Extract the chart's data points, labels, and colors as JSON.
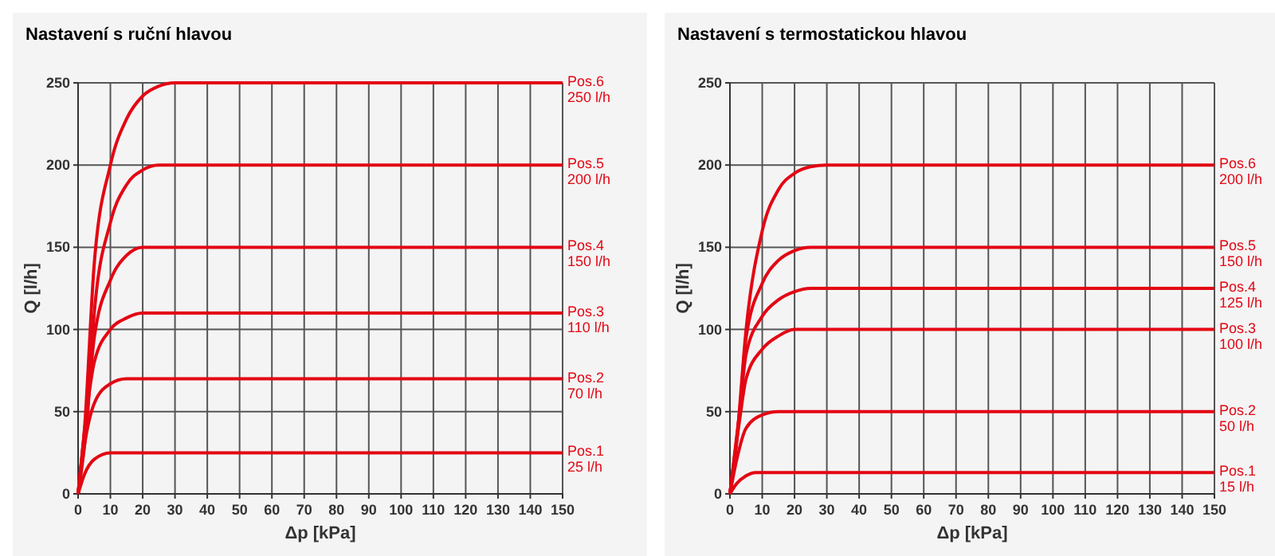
{
  "chart_data": [
    {
      "type": "line",
      "title": "Nastavení s ruční hlavou",
      "xlabel": "Δp [kPa]",
      "ylabel": "Q [l/h]",
      "xlim": [
        0,
        150
      ],
      "ylim": [
        0,
        250
      ],
      "xticks": [
        0,
        10,
        20,
        30,
        40,
        50,
        60,
        70,
        80,
        90,
        100,
        110,
        120,
        130,
        140,
        150
      ],
      "yticks": [
        0,
        50,
        100,
        150,
        200,
        250
      ],
      "grid": true,
      "legend": false,
      "marker": "none",
      "line_style": "solid",
      "series": [
        {
          "name": "Pos.6\n250 l/h",
          "color": "#e30613",
          "x": [
            0,
            2,
            5,
            10,
            15,
            20,
            25,
            30,
            150
          ],
          "values": [
            0,
            40,
            140,
            200,
            228,
            242,
            248,
            250,
            250
          ]
        },
        {
          "name": "Pos.5\n200 l/h",
          "color": "#e30613",
          "x": [
            0,
            3,
            5,
            10,
            15,
            20,
            25,
            150
          ],
          "values": [
            0,
            50,
            110,
            165,
            188,
            197,
            200,
            200
          ]
        },
        {
          "name": "Pos.4\n150 l/h",
          "color": "#e30613",
          "x": [
            0,
            3,
            5,
            10,
            15,
            20,
            150
          ],
          "values": [
            0,
            55,
            95,
            130,
            145,
            150,
            150
          ]
        },
        {
          "name": "Pos.3\n110 l/h",
          "color": "#e30613",
          "x": [
            0,
            3,
            5,
            10,
            15,
            20,
            150
          ],
          "values": [
            0,
            55,
            80,
            100,
            107,
            110,
            110
          ]
        },
        {
          "name": "Pos.2\n70 l/h",
          "color": "#e30613",
          "x": [
            0,
            2,
            5,
            10,
            15,
            150
          ],
          "values": [
            0,
            30,
            55,
            67,
            70,
            70
          ]
        },
        {
          "name": "Pos.1\n25 l/h",
          "color": "#e30613",
          "x": [
            0,
            2,
            5,
            10,
            150
          ],
          "values": [
            0,
            12,
            21,
            25,
            25
          ]
        }
      ]
    },
    {
      "type": "line",
      "title": "Nastavení s termostatickou hlavou",
      "xlabel": "Δp [kPa]",
      "ylabel": "Q [l/h]",
      "xlim": [
        0,
        150
      ],
      "ylim": [
        0,
        250
      ],
      "xticks": [
        0,
        10,
        20,
        30,
        40,
        50,
        60,
        70,
        80,
        90,
        100,
        110,
        120,
        130,
        140,
        150
      ],
      "yticks": [
        0,
        50,
        100,
        150,
        200,
        250
      ],
      "grid": true,
      "legend": false,
      "marker": "none",
      "line_style": "solid",
      "series": [
        {
          "name": "Pos.6\n200 l/h",
          "color": "#e30613",
          "x": [
            0,
            2,
            5,
            10,
            15,
            20,
            25,
            30,
            150
          ],
          "values": [
            0,
            30,
            100,
            160,
            185,
            195,
            199,
            200,
            200
          ]
        },
        {
          "name": "Pos.5\n150 l/h",
          "color": "#e30613",
          "x": [
            0,
            3,
            5,
            10,
            15,
            20,
            25,
            150
          ],
          "values": [
            0,
            50,
            95,
            128,
            142,
            148,
            150,
            150
          ]
        },
        {
          "name": "Pos.4\n125 l/h",
          "color": "#e30613",
          "x": [
            0,
            3,
            5,
            10,
            15,
            20,
            25,
            150
          ],
          "values": [
            0,
            50,
            85,
            108,
            118,
            123,
            125,
            125
          ]
        },
        {
          "name": "Pos.3\n100 l/h",
          "color": "#e30613",
          "x": [
            0,
            3,
            5,
            10,
            15,
            20,
            150
          ],
          "values": [
            0,
            45,
            70,
            88,
            96,
            100,
            100
          ]
        },
        {
          "name": "Pos.2\n50 l/h",
          "color": "#e30613",
          "x": [
            0,
            2,
            5,
            10,
            15,
            150
          ],
          "values": [
            0,
            20,
            40,
            48,
            50,
            50
          ]
        },
        {
          "name": "Pos.1\n15 l/h",
          "color": "#e30613",
          "x": [
            0,
            2,
            5,
            8,
            150
          ],
          "values": [
            0,
            6,
            11,
            13,
            13
          ]
        }
      ]
    }
  ]
}
